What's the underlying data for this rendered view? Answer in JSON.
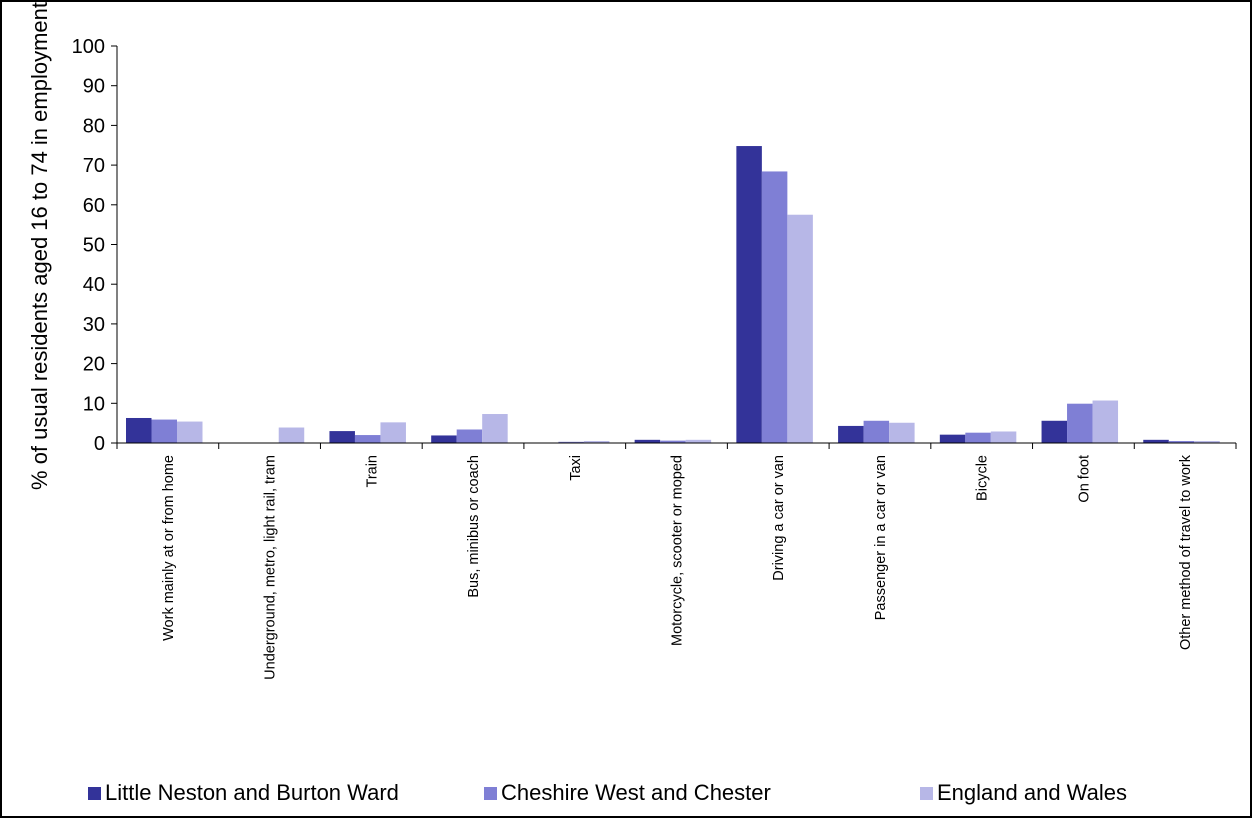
{
  "chart_data": {
    "type": "bar",
    "title": "",
    "xlabel": "",
    "ylabel": "% of usual residents aged 16 to 74 in employment",
    "ylim": [
      0,
      100
    ],
    "yticks": [
      0,
      10,
      20,
      30,
      40,
      50,
      60,
      70,
      80,
      90,
      100
    ],
    "grid": false,
    "legend_position": "bottom",
    "categories": [
      "Work mainly at or from home",
      "Underground, metro, light rail, tram",
      "Train",
      "Bus, minibus or coach",
      "Taxi",
      "Motorcycle, scooter or moped",
      "Driving a car or van",
      "Passenger in a car or van",
      "Bicycle",
      "On foot",
      "Other method of travel to work"
    ],
    "series": [
      {
        "name": "Little Neston and Burton Ward",
        "color": "#333399",
        "values": [
          6.3,
          0.0,
          3.0,
          1.9,
          0.1,
          0.8,
          74.8,
          4.3,
          2.1,
          5.6,
          0.8
        ]
      },
      {
        "name": "Cheshire West and Chester",
        "color": "#7F7FD5",
        "values": [
          5.9,
          0.1,
          2.0,
          3.4,
          0.3,
          0.6,
          68.4,
          5.6,
          2.6,
          9.9,
          0.5
        ]
      },
      {
        "name": "England and Wales",
        "color": "#B7B7E7",
        "values": [
          5.4,
          3.9,
          5.2,
          7.3,
          0.5,
          0.8,
          57.5,
          5.1,
          2.9,
          10.7,
          0.5
        ]
      }
    ]
  }
}
